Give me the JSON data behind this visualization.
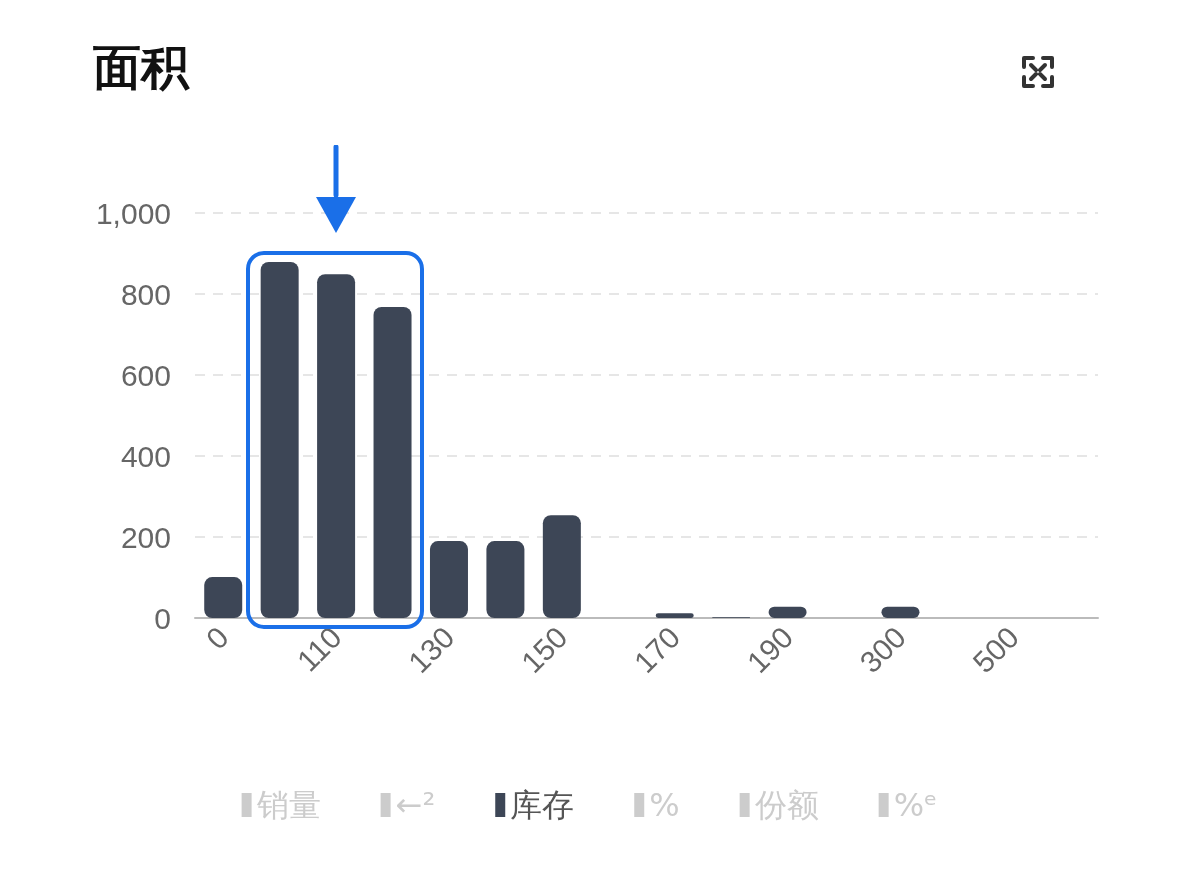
{
  "chart_data": {
    "type": "bar",
    "title": "面积",
    "categories": [
      "0",
      null,
      "110",
      null,
      "130",
      null,
      "150",
      null,
      "170",
      null,
      "190",
      null,
      "300",
      null,
      "500",
      null
    ],
    "series": [
      {
        "name": "销量",
        "color": "#cccccc",
        "values": [
          null,
          null,
          null,
          null,
          null,
          null,
          null,
          null,
          null,
          null,
          null,
          null,
          null,
          null,
          null,
          null
        ]
      },
      {
        "name": "←²",
        "color": "#cccccc",
        "values": [
          null,
          null,
          null,
          null,
          null,
          null,
          null,
          null,
          null,
          null,
          null,
          null,
          null,
          null,
          null,
          null
        ]
      },
      {
        "name": "库存",
        "color": "#3d4656",
        "values": [
          101,
          879,
          849,
          768,
          190,
          190,
          254,
          0,
          12,
          2,
          28,
          0,
          28,
          0,
          0,
          0
        ]
      },
      {
        "name": "%",
        "color": "#cccccc",
        "values": [
          null,
          null,
          null,
          null,
          null,
          null,
          null,
          null,
          null,
          null,
          null,
          null,
          null,
          null,
          null,
          null
        ]
      },
      {
        "name": "份额",
        "color": "#cccccc",
        "values": [
          null,
          null,
          null,
          null,
          null,
          null,
          null,
          null,
          null,
          null,
          null,
          null,
          null,
          null,
          null,
          null
        ]
      },
      {
        "name": "%ᵉ",
        "color": "#cccccc",
        "values": [
          null,
          null,
          null,
          null,
          null,
          null,
          null,
          null,
          null,
          null,
          null,
          null,
          null,
          null,
          null,
          null
        ]
      }
    ],
    "ylim": [
      0,
      1000
    ],
    "yticks": [
      0,
      200,
      400,
      600,
      800,
      {
        "value": 1000,
        "label": "1,000"
      }
    ],
    "grid": "y",
    "legend": "bottom"
  }
}
